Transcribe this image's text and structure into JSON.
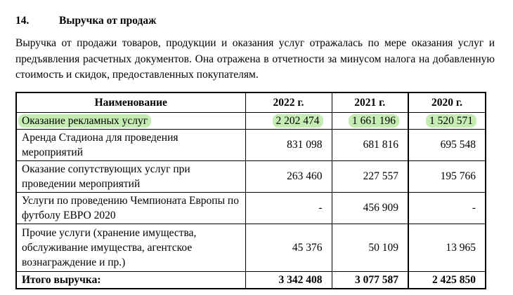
{
  "page": {
    "heading": {
      "number": "14.",
      "title": "Выручка от продаж"
    },
    "paragraph_lines": [
      "Выручка от продажи товаров, продукции и оказания услуг отражалась по мере оказания услуг и",
      "предъявления расчетных документов. Она отражена в отчетности за минусом налога на добавленную",
      "стоимость и скидок, предоставленных покупателям."
    ]
  },
  "table": {
    "highlight_color": "#c5ecb3",
    "headers": [
      "Наименование",
      "2022 г.",
      "2021 г.",
      "2020 г."
    ],
    "rows": [
      {
        "name": "Оказание рекламных услуг",
        "values": [
          "2 202 474",
          "1 661 196",
          "1 520 571"
        ],
        "highlighted": true,
        "total": false
      },
      {
        "name": "Аренда Стадиона для проведения мероприятий",
        "values": [
          "831 098",
          "681 816",
          "695 548"
        ],
        "highlighted": false,
        "total": false
      },
      {
        "name": "Оказание сопутствующих услуг при проведении мероприятий",
        "values": [
          "263 460",
          "227 557",
          "195 766"
        ],
        "highlighted": false,
        "total": false
      },
      {
        "name": "Услуги по проведению Чемпионата Европы по футболу ЕВРО 2020",
        "values": [
          "-",
          "456 909",
          "-"
        ],
        "highlighted": false,
        "total": false
      },
      {
        "name": "Прочие услуги (хранение имущества, обслуживание имущества, агентское вознаграждение и пр.)",
        "values": [
          "45 376",
          "50 109",
          "13 965"
        ],
        "highlighted": false,
        "total": false
      },
      {
        "name": "Итого выручка:",
        "values": [
          "3 342 408",
          "3 077 587",
          "2 425 850"
        ],
        "highlighted": false,
        "total": true
      }
    ]
  }
}
